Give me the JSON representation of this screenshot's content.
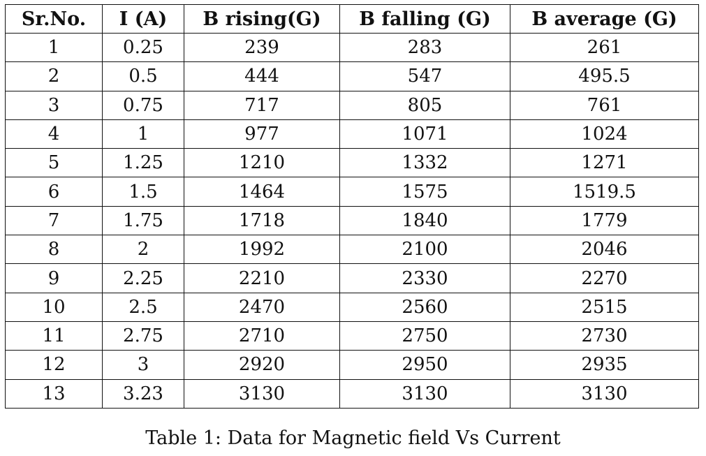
{
  "table": {
    "headers": [
      "Sr.No.",
      "I (A)",
      "B rising(G)",
      "B falling (G)",
      "B average (G)"
    ],
    "rows": [
      [
        "1",
        "0.25",
        "239",
        "283",
        "261"
      ],
      [
        "2",
        "0.5",
        "444",
        "547",
        "495.5"
      ],
      [
        "3",
        "0.75",
        "717",
        "805",
        "761"
      ],
      [
        "4",
        "1",
        "977",
        "1071",
        "1024"
      ],
      [
        "5",
        "1.25",
        "1210",
        "1332",
        "1271"
      ],
      [
        "6",
        "1.5",
        "1464",
        "1575",
        "1519.5"
      ],
      [
        "7",
        "1.75",
        "1718",
        "1840",
        "1779"
      ],
      [
        "8",
        "2",
        "1992",
        "2100",
        "2046"
      ],
      [
        "9",
        "2.25",
        "2210",
        "2330",
        "2270"
      ],
      [
        "10",
        "2.5",
        "2470",
        "2560",
        "2515"
      ],
      [
        "11",
        "2.75",
        "2710",
        "2750",
        "2730"
      ],
      [
        "12",
        "3",
        "2920",
        "2950",
        "2935"
      ],
      [
        "13",
        "3.23",
        "3130",
        "3130",
        "3130"
      ]
    ]
  },
  "caption": "Table 1: Data for Magnetic field Vs Current"
}
